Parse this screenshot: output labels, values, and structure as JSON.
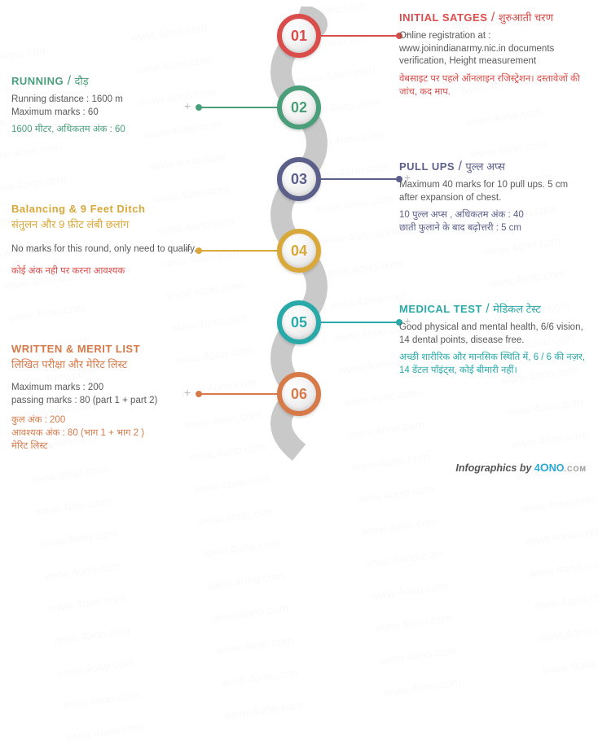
{
  "colors": {
    "step1": "#d94d4a",
    "step2": "#4a9e7a",
    "step3": "#5b5f8a",
    "step4": "#d9a83a",
    "step5": "#2aa9a9",
    "step6": "#d67a4a",
    "grey": "#5a5a5a",
    "spine": "#c9c9c9"
  },
  "steps": [
    {
      "num": "01",
      "title_en": "INITIAL SATGES",
      "title_hi": "शुरुआती चरण",
      "desc_en": "Online registration at : www.joinindianarmy.nic.in documents verification, Height measurement",
      "desc_hi": "वेबसाइट पर पहले ऑनलाइन रजिस्ट्रेशन। दस्तावेजों की जांच, कद माप."
    },
    {
      "num": "02",
      "title_en": "RUNNING",
      "title_hi": "दौड़",
      "desc_en": "Running distance : 1600 m\nMaximum marks : 60",
      "desc_hi": "1600 मीटर, अधिकतम अंक : 60"
    },
    {
      "num": "03",
      "title_en": "PULL UPS",
      "title_hi": "पुल्ल अप्स",
      "desc_en": "Maximum 40 marks for 10 pull ups. 5 cm after expansion of chest.",
      "desc_hi": "10 पुल्ल अप्स , अधिकतम अंक : 40\nछाती फुलाने के बाद बढ़ोत्तरी : 5 cm"
    },
    {
      "num": "04",
      "title_en_html": "Balancing & 9 Feet Ditch",
      "title_hi": "संतुलन और 9 फ़ीट लंबी छलांग",
      "desc_en": "No marks for this round, only need to qualify.",
      "desc_hi": "कोई अंक नही पर करना आवश्यक"
    },
    {
      "num": "05",
      "title_en": "MEDICAL TEST",
      "title_hi": "मेडिकल टेस्ट",
      "desc_en": "Good physical and mental health, 6/6 vision, 14 dental points, disease free.",
      "desc_hi": "अच्छी शारीरिक और मानसिक स्थिति में, 6 / 6 की नज़र, 14 डेंटल पॉइंट्स, कोई बीमारी नहीं।"
    },
    {
      "num": "06",
      "title_en": "WRITTEN & MERIT LIST",
      "title_hi": "लिखित परीक्षा और मेरिट लिस्ट",
      "desc_en": "Maximum marks : 200\npassing marks : 80 (part 1 + part 2)",
      "desc_hi": "कुल अंक : 200\nआवश्यक अंक : 80 (भाग 1 + भाग 2 )\nमेरिट लिस्ट"
    }
  ],
  "footer": {
    "by": "Infographics by ",
    "brand": "4ONO",
    "com": ".COM"
  },
  "watermark": "www.4ono.com"
}
